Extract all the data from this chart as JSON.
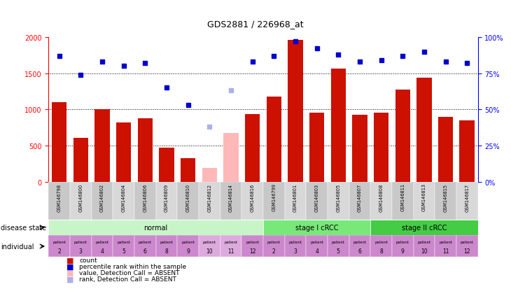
{
  "title": "GDS2881 / 226968_at",
  "samples": [
    "GSM146798",
    "GSM146800",
    "GSM146802",
    "GSM146804",
    "GSM146806",
    "GSM146809",
    "GSM146810",
    "GSM146812",
    "GSM146814",
    "GSM146816",
    "GSM146799",
    "GSM146801",
    "GSM146803",
    "GSM146805",
    "GSM146807",
    "GSM146808",
    "GSM146811",
    "GSM146813",
    "GSM146815",
    "GSM146817"
  ],
  "count_values": [
    1100,
    610,
    1000,
    820,
    880,
    470,
    330,
    190,
    670,
    940,
    1180,
    1960,
    950,
    1560,
    930,
    950,
    1270,
    1440,
    900,
    850
  ],
  "individual_absent": [
    false,
    false,
    false,
    false,
    false,
    false,
    false,
    true,
    true,
    false,
    false,
    false,
    false,
    false,
    false,
    false,
    false,
    false,
    false,
    false
  ],
  "rank_values": [
    87,
    74,
    83,
    80,
    82,
    65,
    53,
    38,
    63,
    83,
    87,
    97,
    92,
    88,
    83,
    84,
    87,
    90,
    83,
    82
  ],
  "disease_groups": [
    {
      "label": "normal",
      "start": 0,
      "end": 10,
      "color": "#c8f5c8"
    },
    {
      "label": "stage I cRCC",
      "start": 10,
      "end": 15,
      "color": "#78e878"
    },
    {
      "label": "stage II cRCC",
      "start": 15,
      "end": 20,
      "color": "#44cc44"
    }
  ],
  "individual_labels": [
    "2",
    "3",
    "4",
    "5",
    "6",
    "8",
    "9",
    "10",
    "11",
    "12",
    "2",
    "3",
    "4",
    "5",
    "6",
    "8",
    "9",
    "10",
    "11",
    "12"
  ],
  "bar_color_normal": "#cc1100",
  "bar_color_absent": "#ffb8b8",
  "dot_color_normal": "#0000cc",
  "dot_color_absent": "#b0b0e8",
  "ylim_left": [
    0,
    2000
  ],
  "ylim_right": [
    0,
    100
  ],
  "yticks_left": [
    0,
    500,
    1000,
    1500,
    2000
  ],
  "yticks_right": [
    0,
    25,
    50,
    75,
    100
  ],
  "ytick_right_labels": [
    "0%",
    "25%",
    "50%",
    "75%",
    "100%"
  ],
  "grid_values": [
    500,
    1000,
    1500
  ],
  "sample_bg_even": "#c8c8c8",
  "sample_bg_odd": "#d8d8d8",
  "individual_color_normal": "#cc88cc",
  "individual_color_absent": "#ddaadd"
}
